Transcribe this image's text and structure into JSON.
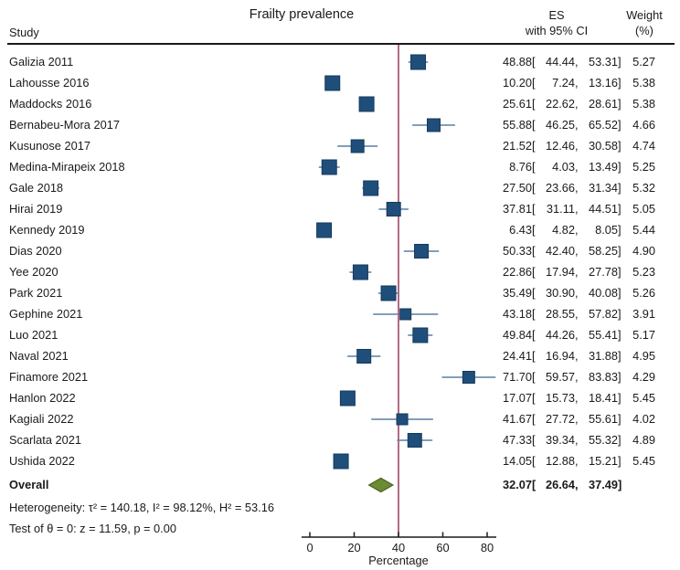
{
  "header": {
    "title": "Frailty prevalence",
    "study_col": "Study",
    "es_col_line1": "ES",
    "es_col_line2": "with 95% CI",
    "weight_col_line1": "Weight",
    "weight_col_line2": "(%)"
  },
  "colors": {
    "marker_fill": "#1f4e7a",
    "marker_border": "#16395c",
    "ci_line": "#5b7fa6",
    "reference_line": "#a04565",
    "diamond_fill": "#6b8c32",
    "diamond_border": "#4a6320",
    "axis": "#1a1a1a",
    "text": "#1a1a1a"
  },
  "chart_data": {
    "type": "forest",
    "title": "Frailty prevalence",
    "xlabel": "Percentage",
    "xlim": [
      0,
      80
    ],
    "xticks": [
      0,
      20,
      40,
      60,
      80
    ],
    "reference_line_x": 40,
    "studies": [
      {
        "label": "Galizia 2011",
        "es": 48.88,
        "lo": 44.44,
        "hi": 53.31,
        "weight": 5.27
      },
      {
        "label": "Lahousse 2016",
        "es": 10.2,
        "lo": 7.24,
        "hi": 13.16,
        "weight": 5.38
      },
      {
        "label": "Maddocks 2016",
        "es": 25.61,
        "lo": 22.62,
        "hi": 28.61,
        "weight": 5.38
      },
      {
        "label": "Bernabeu-Mora 2017",
        "es": 55.88,
        "lo": 46.25,
        "hi": 65.52,
        "weight": 4.66
      },
      {
        "label": "Kusunose 2017",
        "es": 21.52,
        "lo": 12.46,
        "hi": 30.58,
        "weight": 4.74
      },
      {
        "label": "Medina-Mirapeix 2018",
        "es": 8.76,
        "lo": 4.03,
        "hi": 13.49,
        "weight": 5.25
      },
      {
        "label": "Gale 2018",
        "es": 27.5,
        "lo": 23.66,
        "hi": 31.34,
        "weight": 5.32
      },
      {
        "label": "Hirai 2019",
        "es": 37.81,
        "lo": 31.11,
        "hi": 44.51,
        "weight": 5.05
      },
      {
        "label": "Kennedy 2019",
        "es": 6.43,
        "lo": 4.82,
        "hi": 8.05,
        "weight": 5.44
      },
      {
        "label": "Dias 2020",
        "es": 50.33,
        "lo": 42.4,
        "hi": 58.25,
        "weight": 4.9
      },
      {
        "label": "Yee 2020",
        "es": 22.86,
        "lo": 17.94,
        "hi": 27.78,
        "weight": 5.23
      },
      {
        "label": "Park 2021",
        "es": 35.49,
        "lo": 30.9,
        "hi": 40.08,
        "weight": 5.26
      },
      {
        "label": "Gephine 2021",
        "es": 43.18,
        "lo": 28.55,
        "hi": 57.82,
        "weight": 3.91
      },
      {
        "label": "Luo 2021",
        "es": 49.84,
        "lo": 44.26,
        "hi": 55.41,
        "weight": 5.17
      },
      {
        "label": "Naval 2021",
        "es": 24.41,
        "lo": 16.94,
        "hi": 31.88,
        "weight": 4.95
      },
      {
        "label": "Finamore 2021",
        "es": 71.7,
        "lo": 59.57,
        "hi": 83.83,
        "weight": 4.29
      },
      {
        "label": "Hanlon 2022",
        "es": 17.07,
        "lo": 15.73,
        "hi": 18.41,
        "weight": 5.45
      },
      {
        "label": "Kagiali 2022",
        "es": 41.67,
        "lo": 27.72,
        "hi": 55.61,
        "weight": 4.02
      },
      {
        "label": "Scarlata 2021",
        "es": 47.33,
        "lo": 39.34,
        "hi": 55.32,
        "weight": 4.89
      },
      {
        "label": "Ushida 2022",
        "es": 14.05,
        "lo": 12.88,
        "hi": 15.21,
        "weight": 5.45
      }
    ],
    "overall": {
      "label": "Overall",
      "es": 32.07,
      "lo": 26.64,
      "hi": 37.49
    },
    "heterogeneity_line": "Heterogeneity: τ² = 140.18, I² = 98.12%, H² = 53.16",
    "test_line": "Test of θ = 0: z = 11.59, p = 0.00"
  }
}
